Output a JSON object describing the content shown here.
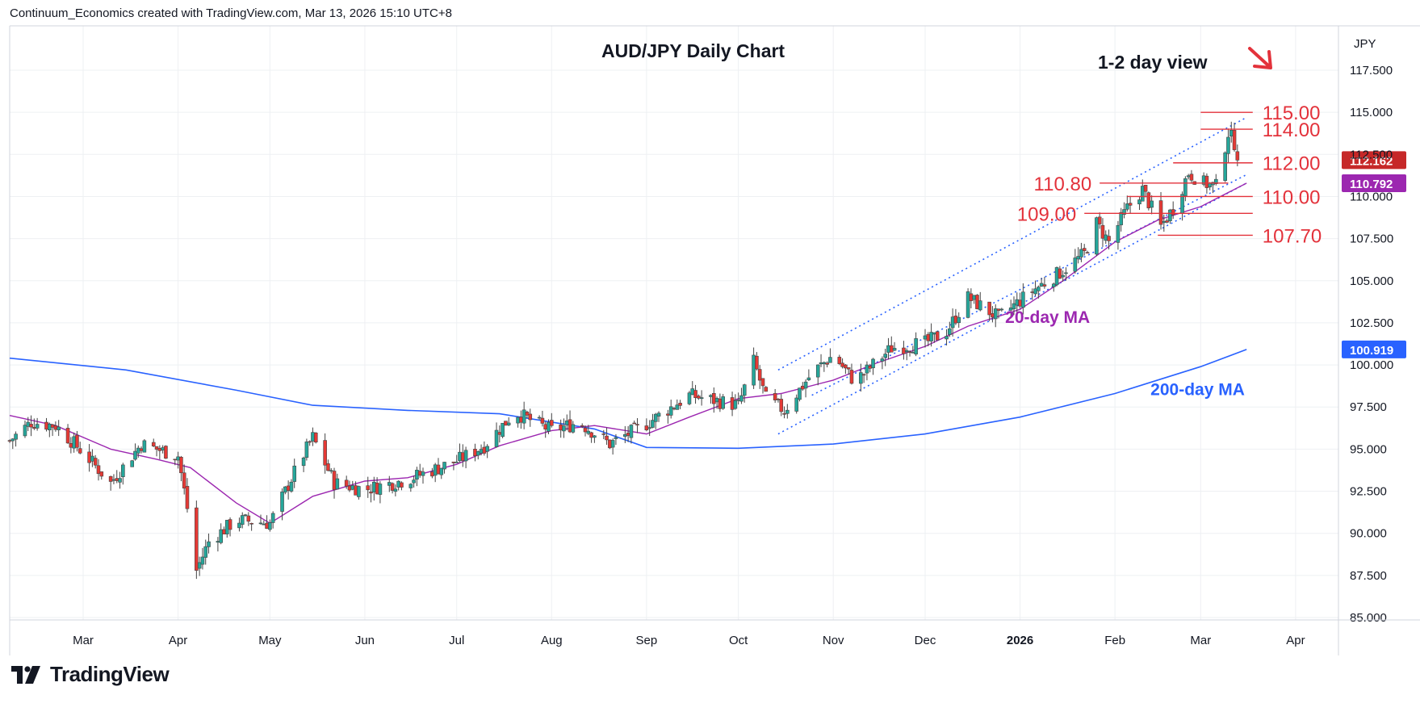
{
  "header": {
    "attribution": "Continuum_Economics created with TradingView.com, Mar 13, 2026 15:10 UTC+8"
  },
  "footer": {
    "brand": "TradingView"
  },
  "colors": {
    "up": "#26a69a",
    "down": "#e53935",
    "wick": "#444444",
    "ma20": "#9c27b0",
    "ma200": "#2962ff",
    "levels": "#e3323b",
    "channel": "#2962ff",
    "grid": "#eef0f3",
    "price_badge": "#c62828",
    "ma20_badge": "#9c27b0",
    "ma200_badge": "#2962ff"
  },
  "chart_data": {
    "type": "candlestick",
    "title": "AUD/JPY Daily Chart",
    "currency": "JPY",
    "view_text": "1-2 day view",
    "view_arrow": "down-right-arrow",
    "yaxis": {
      "ticks": [
        85.0,
        87.5,
        90.0,
        92.5,
        95.0,
        97.5,
        100.0,
        102.5,
        105.0,
        107.5,
        110.0,
        112.5,
        115.0,
        117.5
      ],
      "tick_labels": [
        "85.000",
        "87.500",
        "90.000",
        "92.500",
        "95.000",
        "97.500",
        "100.000",
        "102.500",
        "105.000",
        "107.500",
        "110.000",
        "112.500",
        "115.000",
        "117.500"
      ],
      "ylim": [
        84.5,
        119.5
      ]
    },
    "xaxis": {
      "labels": [
        "Mar",
        "Apr",
        "May",
        "Jun",
        "Jul",
        "Aug",
        "Sep",
        "Oct",
        "Nov",
        "Dec",
        "2026",
        "Feb",
        "Mar",
        "Apr"
      ],
      "start": "2025-02-05",
      "end": "2026-04-15"
    },
    "price_badges": [
      {
        "label": "112.162",
        "value": 112.162,
        "kind": "last"
      },
      {
        "label": "110.792",
        "value": 110.792,
        "kind": "ma20"
      },
      {
        "label": "100.919",
        "value": 100.919,
        "kind": "ma200"
      },
      {
        "label": "112.500",
        "value": 112.5,
        "kind": "hidden"
      }
    ],
    "levels": [
      {
        "label": "115.00",
        "value": 115.0,
        "from": "2026-03-01",
        "to": "2026-03-18",
        "label_side": "right"
      },
      {
        "label": "114.00",
        "value": 114.0,
        "from": "2026-03-01",
        "to": "2026-03-18",
        "label_side": "right"
      },
      {
        "label": "112.00",
        "value": 112.0,
        "from": "2026-02-20",
        "to": "2026-03-18",
        "label_side": "right"
      },
      {
        "label": "110.80",
        "value": 110.8,
        "from": "2026-01-27",
        "to": "2026-03-10",
        "label_side": "left"
      },
      {
        "label": "110.00",
        "value": 110.0,
        "from": "2026-02-05",
        "to": "2026-03-18",
        "label_side": "right"
      },
      {
        "label": "109.00",
        "value": 109.0,
        "from": "2026-01-22",
        "to": "2026-03-18",
        "label_side": "left"
      },
      {
        "label": "107.70",
        "value": 107.7,
        "from": "2026-02-15",
        "to": "2026-03-18",
        "label_side": "right"
      }
    ],
    "annotations": [
      {
        "text": "20-day MA",
        "x": "2026-01-10",
        "y": 102.5,
        "kind": "ma20"
      },
      {
        "text": "200-day MA",
        "x": "2026-02-28",
        "y": 98.2,
        "kind": "ma200"
      }
    ],
    "channel": {
      "upper": [
        [
          "2025-10-14",
          99.7
        ],
        [
          "2026-03-16",
          114.7
        ]
      ],
      "lower": [
        [
          "2025-10-14",
          95.9
        ],
        [
          "2026-03-16",
          110.8
        ]
      ],
      "inner": [
        [
          "2025-10-25",
          98.2
        ],
        [
          "2026-03-16",
          111.3
        ]
      ]
    },
    "ma200": [
      [
        "2025-02-05",
        100.4
      ],
      [
        "2025-03-15",
        99.7
      ],
      [
        "2025-04-20",
        98.5
      ],
      [
        "2025-05-15",
        97.6
      ],
      [
        "2025-06-15",
        97.3
      ],
      [
        "2025-07-15",
        97.1
      ],
      [
        "2025-08-15",
        96.2
      ],
      [
        "2025-09-01",
        95.1
      ],
      [
        "2025-10-01",
        95.05
      ],
      [
        "2025-11-01",
        95.3
      ],
      [
        "2025-12-01",
        95.9
      ],
      [
        "2026-01-01",
        96.9
      ],
      [
        "2026-02-01",
        98.3
      ],
      [
        "2026-03-01",
        99.9
      ],
      [
        "2026-03-16",
        100.919
      ]
    ],
    "ma20": [
      [
        "2025-02-05",
        97.0
      ],
      [
        "2025-02-20",
        96.4
      ],
      [
        "2025-03-10",
        95.0
      ],
      [
        "2025-03-25",
        94.4
      ],
      [
        "2025-04-05",
        93.9
      ],
      [
        "2025-04-20",
        91.8
      ],
      [
        "2025-05-01",
        90.6
      ],
      [
        "2025-05-15",
        92.2
      ],
      [
        "2025-06-01",
        93.1
      ],
      [
        "2025-06-15",
        93.3
      ],
      [
        "2025-07-01",
        94.1
      ],
      [
        "2025-07-15",
        95.2
      ],
      [
        "2025-08-01",
        96.1
      ],
      [
        "2025-08-15",
        96.4
      ],
      [
        "2025-09-01",
        95.9
      ],
      [
        "2025-09-15",
        96.9
      ],
      [
        "2025-10-01",
        98.0
      ],
      [
        "2025-10-15",
        98.3
      ],
      [
        "2025-11-01",
        99.1
      ],
      [
        "2025-11-15",
        100.1
      ],
      [
        "2025-12-01",
        101.1
      ],
      [
        "2025-12-15",
        102.3
      ],
      [
        "2026-01-01",
        103.3
      ],
      [
        "2026-01-15",
        105.0
      ],
      [
        "2026-02-01",
        107.3
      ],
      [
        "2026-02-15",
        108.6
      ],
      [
        "2026-03-01",
        109.4
      ],
      [
        "2026-03-16",
        110.792
      ]
    ],
    "series_anchors": [
      [
        "2025-02-05",
        95.5
      ],
      [
        "2025-02-12",
        96.6
      ],
      [
        "2025-02-20",
        96.4
      ],
      [
        "2025-03-01",
        94.8
      ],
      [
        "2025-03-10",
        93.0
      ],
      [
        "2025-03-20",
        95.3
      ],
      [
        "2025-04-01",
        94.6
      ],
      [
        "2025-04-04",
        91.5
      ],
      [
        "2025-04-07",
        87.8
      ],
      [
        "2025-04-11",
        89.5
      ],
      [
        "2025-04-20",
        90.8
      ],
      [
        "2025-05-01",
        90.6
      ],
      [
        "2025-05-10",
        94.0
      ],
      [
        "2025-05-15",
        95.7
      ],
      [
        "2025-05-22",
        93.0
      ],
      [
        "2025-06-01",
        92.6
      ],
      [
        "2025-06-15",
        93.2
      ],
      [
        "2025-07-01",
        94.3
      ],
      [
        "2025-07-10",
        95.2
      ],
      [
        "2025-07-20",
        97.2
      ],
      [
        "2025-08-01",
        96.1
      ],
      [
        "2025-08-10",
        96.6
      ],
      [
        "2025-08-20",
        95.3
      ],
      [
        "2025-09-01",
        96.5
      ],
      [
        "2025-09-15",
        98.2
      ],
      [
        "2025-10-01",
        97.6
      ],
      [
        "2025-10-06",
        100.2
      ],
      [
        "2025-10-10",
        98.0
      ],
      [
        "2025-10-16",
        97.3
      ],
      [
        "2025-10-25",
        99.5
      ],
      [
        "2025-11-01",
        100.6
      ],
      [
        "2025-11-08",
        99.0
      ],
      [
        "2025-11-20",
        101.0
      ],
      [
        "2025-12-01",
        101.3
      ],
      [
        "2025-12-08",
        102.0
      ],
      [
        "2025-12-15",
        104.0
      ],
      [
        "2025-12-25",
        102.8
      ],
      [
        "2026-01-05",
        104.4
      ],
      [
        "2026-01-15",
        105.6
      ],
      [
        "2026-01-22",
        106.6
      ],
      [
        "2026-01-26",
        108.4
      ],
      [
        "2026-01-30",
        107.3
      ],
      [
        "2026-02-05",
        109.3
      ],
      [
        "2026-02-10",
        110.4
      ],
      [
        "2026-02-16",
        108.2
      ],
      [
        "2026-02-20",
        109.3
      ],
      [
        "2026-02-25",
        111.4
      ],
      [
        "2026-03-02",
        110.8
      ],
      [
        "2026-03-06",
        110.6
      ],
      [
        "2026-03-10",
        113.8
      ],
      [
        "2026-03-12",
        113.2
      ],
      [
        "2026-03-13",
        112.162
      ]
    ]
  }
}
